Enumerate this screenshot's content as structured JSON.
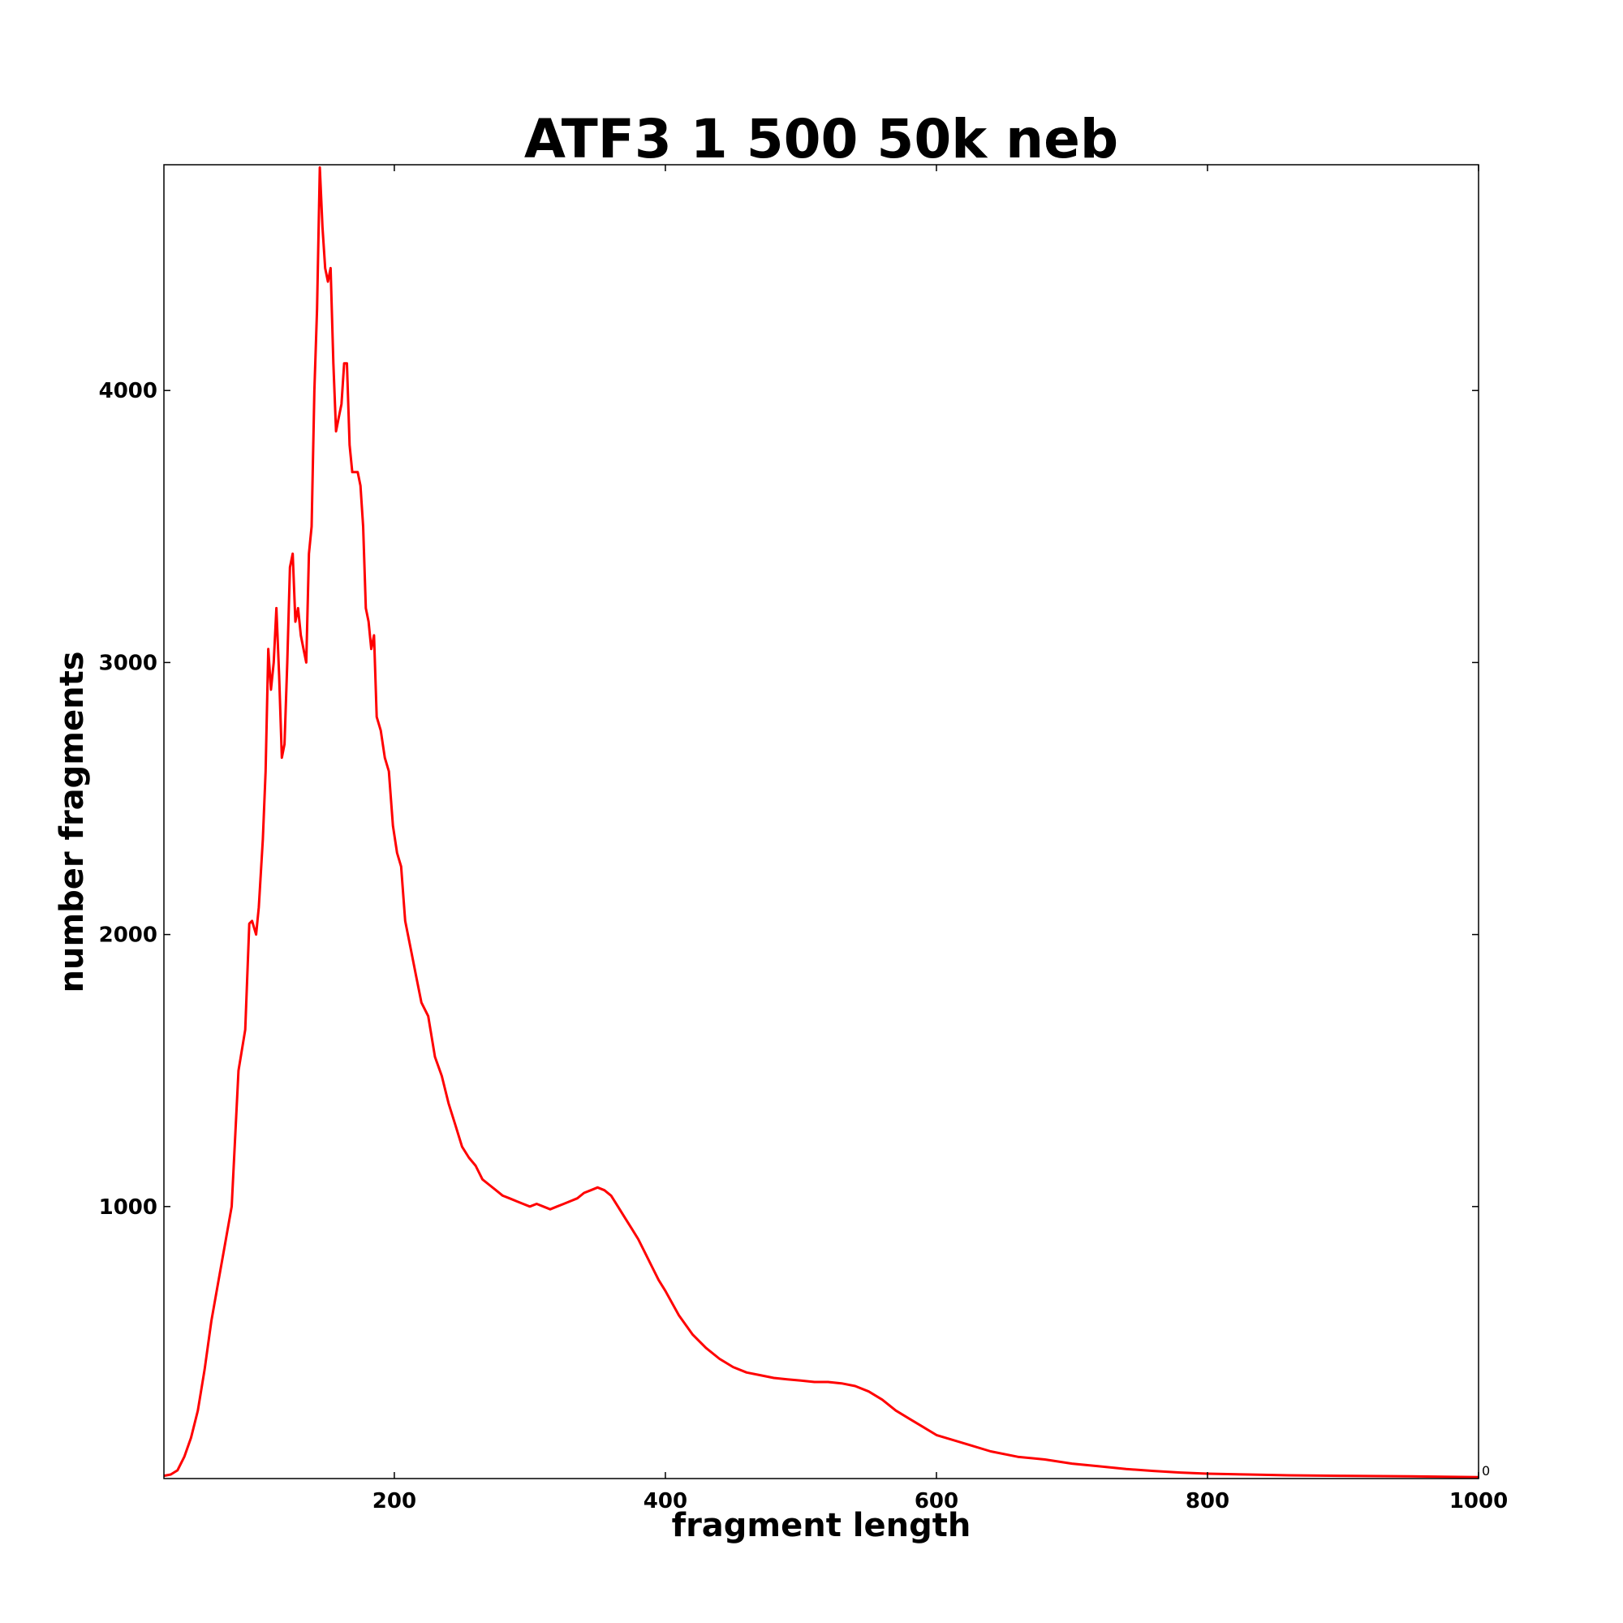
{
  "chart_data": {
    "type": "line",
    "title": "ATF3 1 500 50k neb",
    "xlabel": "fragment length",
    "ylabel": "number fragments",
    "xlim": [
      30,
      1000
    ],
    "ylim": [
      0,
      4830
    ],
    "xticks": [
      200,
      400,
      600,
      800,
      1000
    ],
    "yticks": [
      1000,
      2000,
      3000,
      4000
    ],
    "y_min_label": "0",
    "grid": false,
    "legend": "none",
    "line_color": "#ff0000",
    "series": [
      {
        "x": [
          30,
          35,
          40,
          45,
          50,
          55,
          60,
          65,
          70,
          75,
          80,
          85,
          90,
          93,
          95,
          98,
          100,
          103,
          105,
          107,
          109,
          111,
          113,
          115,
          117,
          119,
          121,
          123,
          125,
          127,
          129,
          131,
          133,
          135,
          137,
          139,
          141,
          143,
          145,
          147,
          149,
          151,
          153,
          155,
          157,
          159,
          161,
          163,
          165,
          167,
          169,
          171,
          173,
          175,
          177,
          179,
          181,
          183,
          185,
          187,
          190,
          193,
          196,
          199,
          202,
          205,
          208,
          212,
          216,
          220,
          225,
          230,
          235,
          240,
          245,
          250,
          255,
          260,
          265,
          270,
          275,
          280,
          285,
          290,
          295,
          300,
          305,
          310,
          315,
          320,
          325,
          330,
          335,
          340,
          345,
          350,
          355,
          360,
          365,
          370,
          375,
          380,
          385,
          390,
          395,
          400,
          410,
          420,
          430,
          440,
          450,
          460,
          470,
          480,
          490,
          500,
          510,
          520,
          530,
          540,
          550,
          560,
          570,
          580,
          590,
          600,
          620,
          640,
          660,
          680,
          700,
          720,
          740,
          760,
          780,
          800,
          830,
          860,
          900,
          950,
          1000
        ],
        "y": [
          10,
          15,
          30,
          80,
          150,
          250,
          400,
          580,
          720,
          860,
          1000,
          1500,
          1650,
          2040,
          2050,
          2000,
          2100,
          2350,
          2600,
          3050,
          2900,
          3000,
          3200,
          2950,
          2650,
          2700,
          3000,
          3350,
          3400,
          3150,
          3200,
          3100,
          3050,
          3000,
          3400,
          3500,
          4000,
          4300,
          4820,
          4600,
          4450,
          4400,
          4450,
          4100,
          3850,
          3900,
          3950,
          4100,
          4100,
          3800,
          3700,
          3700,
          3700,
          3650,
          3500,
          3200,
          3150,
          3050,
          3100,
          2800,
          2750,
          2650,
          2600,
          2400,
          2300,
          2250,
          2050,
          1950,
          1850,
          1750,
          1700,
          1550,
          1480,
          1380,
          1300,
          1220,
          1180,
          1150,
          1100,
          1080,
          1060,
          1040,
          1030,
          1020,
          1010,
          1000,
          1010,
          1000,
          990,
          1000,
          1010,
          1020,
          1030,
          1050,
          1060,
          1070,
          1060,
          1040,
          1000,
          960,
          920,
          880,
          830,
          780,
          730,
          690,
          600,
          530,
          480,
          440,
          410,
          390,
          380,
          370,
          365,
          360,
          355,
          355,
          350,
          340,
          320,
          290,
          250,
          220,
          190,
          160,
          130,
          100,
          80,
          70,
          55,
          45,
          35,
          28,
          22,
          18,
          15,
          12,
          10,
          8,
          5
        ]
      }
    ]
  }
}
